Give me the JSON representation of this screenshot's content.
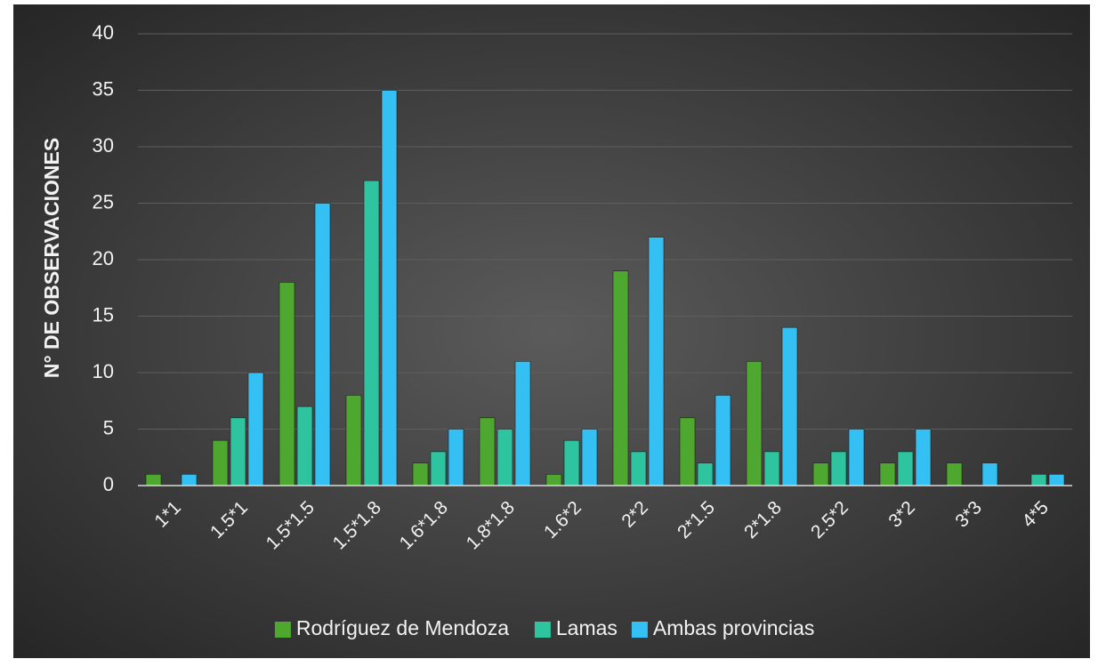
{
  "chart_data": {
    "type": "bar",
    "y_label": "N° DE OBSERVACIONES",
    "categories": [
      "1*1",
      "1.5*1",
      "1.5*1.5",
      "1.5*1.8",
      "1.6*1.8",
      "1.8*1.8",
      "1.6*2",
      "2*2",
      "2*1.5",
      "2*1.8",
      "2.5*2",
      "3*2",
      "3*3",
      "4*5"
    ],
    "series": [
      {
        "name": "Rodríguez de Mendoza",
        "color": "#4ea72e",
        "values": [
          1,
          4,
          18,
          8,
          2,
          6,
          1,
          19,
          6,
          11,
          2,
          2,
          2,
          0
        ]
      },
      {
        "name": "Lamas",
        "color": "#2ec4a0",
        "values": [
          0,
          6,
          7,
          27,
          3,
          5,
          4,
          3,
          2,
          3,
          3,
          3,
          0,
          1
        ]
      },
      {
        "name": "Ambas provincias",
        "color": "#35c0f4",
        "values": [
          1,
          10,
          25,
          35,
          5,
          11,
          5,
          22,
          8,
          14,
          5,
          5,
          2,
          1
        ]
      }
    ],
    "ylim": [
      0,
      40
    ],
    "yticks": [
      0,
      5,
      10,
      15,
      20,
      25,
      30,
      35,
      40
    ],
    "grid": true,
    "legend": "bottom"
  }
}
